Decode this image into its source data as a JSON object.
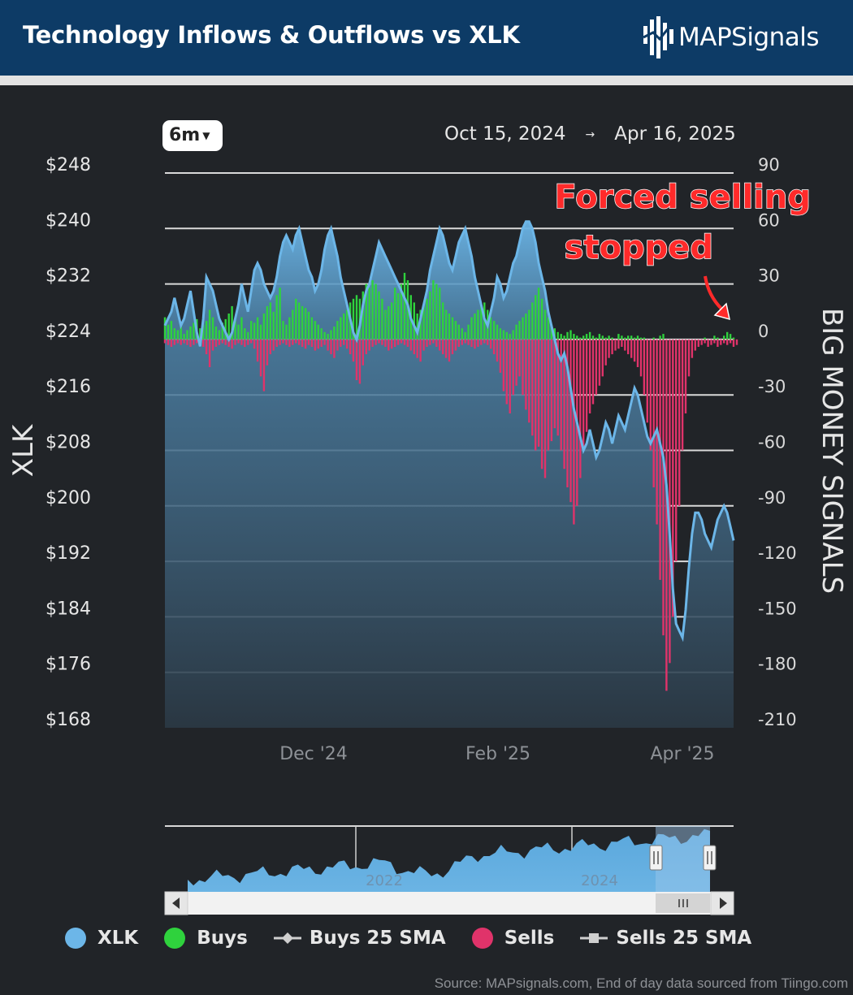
{
  "header": {
    "title": "Technology Inflows & Outflows vs XLK",
    "logo_text": "MAPSignals",
    "bg_color": "#0d3b66"
  },
  "controls": {
    "range_label": "6m",
    "date_from": "Oct 15, 2024",
    "date_to": "Apr 16, 2025",
    "arrow": "→"
  },
  "annotation": {
    "line1": "Forced selling",
    "line2": "stopped",
    "color": "#ff2a2a"
  },
  "legend": {
    "items": [
      {
        "label": "XLK",
        "kind": "dot",
        "color": "#6cb6e8"
      },
      {
        "label": "Buys",
        "kind": "dot",
        "color": "#2fd23d"
      },
      {
        "label": "Buys 25 SMA",
        "kind": "sma-diamond",
        "color": "#cfcfcf"
      },
      {
        "label": "Sells",
        "kind": "dot",
        "color": "#e0336a"
      },
      {
        "label": "Sells 25 SMA",
        "kind": "sma-square",
        "color": "#cfcfcf"
      }
    ]
  },
  "source": "Source: MAPsignals.com, End of day data sourced from Tiingo.com",
  "chart_data": {
    "type": "combo-area-bar",
    "left_axis": {
      "label": "XLK",
      "ticks": [
        "$248",
        "$240",
        "$232",
        "$224",
        "$216",
        "$208",
        "$200",
        "$192",
        "$184",
        "$176",
        "$168"
      ],
      "range": [
        168,
        248
      ]
    },
    "right_axis": {
      "label": "BIG MONEY SIGNALS",
      "ticks": [
        "90",
        "60",
        "30",
        "0",
        "-30",
        "-60",
        "-90",
        "-120",
        "-150",
        "-180",
        "-210"
      ],
      "range": [
        -210,
        90
      ]
    },
    "x_ticks": [
      "Dec '24",
      "Feb '25",
      "Apr '25"
    ],
    "grid": true,
    "series": [
      {
        "name": "XLK",
        "kind": "area",
        "color": "#6cb6e8",
        "values": [
          226,
          227,
          228,
          230,
          228,
          226,
          227,
          229,
          231,
          228,
          225,
          223,
          227,
          233,
          232,
          231,
          229,
          227,
          226,
          225,
          224,
          225,
          227,
          229,
          232,
          230,
          228,
          231,
          234,
          235,
          234,
          232,
          231,
          230,
          231,
          233,
          236,
          238,
          239,
          238,
          237,
          239,
          240,
          238,
          236,
          234,
          233,
          231,
          232,
          234,
          237,
          239,
          240,
          238,
          236,
          233,
          231,
          229,
          227,
          225,
          224,
          226,
          229,
          231,
          232,
          234,
          236,
          238,
          237,
          236,
          235,
          234,
          233,
          232,
          231,
          230,
          229,
          227,
          226,
          225,
          227,
          229,
          231,
          234,
          236,
          238,
          240,
          239,
          237,
          235,
          234,
          236,
          238,
          239,
          240,
          238,
          236,
          233,
          231,
          229,
          227,
          226,
          228,
          230,
          233,
          232,
          230,
          231,
          233,
          235,
          236,
          238,
          240,
          241,
          241,
          240,
          238,
          235,
          233,
          231,
          228,
          226,
          224,
          222,
          221,
          222,
          220,
          217,
          214,
          212,
          210,
          208,
          209,
          211,
          209,
          207,
          208,
          210,
          212,
          211,
          209,
          211,
          213,
          212,
          211,
          213,
          215,
          217,
          216,
          214,
          212,
          210,
          209,
          210,
          211,
          209,
          207,
          203,
          196,
          188,
          183,
          182,
          181,
          185,
          191,
          196,
          199,
          199,
          198,
          196,
          195,
          194,
          196,
          198,
          199,
          200,
          199,
          197,
          195
        ]
      },
      {
        "name": "Buys",
        "kind": "bar",
        "color": "#2fd23d",
        "values": [
          12,
          8,
          10,
          6,
          5,
          8,
          3,
          5,
          7,
          9,
          11,
          6,
          8,
          10,
          16,
          12,
          7,
          5,
          9,
          11,
          14,
          18,
          10,
          8,
          12,
          6,
          4,
          10,
          9,
          12,
          8,
          14,
          18,
          20,
          15,
          24,
          28,
          10,
          8,
          12,
          16,
          22,
          20,
          18,
          17,
          15,
          12,
          10,
          8,
          6,
          4,
          3,
          5,
          7,
          10,
          12,
          14,
          16,
          20,
          22,
          24,
          22,
          26,
          30,
          28,
          32,
          30,
          26,
          22,
          16,
          18,
          20,
          28,
          25,
          30,
          36,
          32,
          24,
          20,
          14,
          16,
          18,
          22,
          26,
          32,
          30,
          28,
          20,
          16,
          14,
          12,
          10,
          8,
          6,
          4,
          8,
          12,
          14,
          16,
          18,
          20,
          16,
          12,
          10,
          8,
          6,
          5,
          4,
          3,
          5,
          8,
          10,
          12,
          14,
          16,
          20,
          24,
          28,
          22,
          16,
          12,
          8,
          6,
          4,
          3,
          2,
          4,
          5,
          3,
          2,
          1,
          2,
          3,
          4,
          2,
          1,
          3,
          2,
          1,
          2,
          1,
          0,
          3,
          2,
          1,
          2,
          2,
          1,
          2,
          1,
          1,
          0,
          0,
          1,
          0,
          2,
          3,
          0,
          0,
          0,
          0,
          0,
          0,
          0,
          0,
          0,
          0,
          0,
          0,
          1,
          0,
          0,
          2,
          1,
          0,
          2,
          4,
          3,
          1
        ]
      },
      {
        "name": "Sells",
        "kind": "bar",
        "color": "#e0336a",
        "values": [
          -2,
          -3,
          -4,
          -3,
          -2,
          -3,
          -2,
          -3,
          -4,
          -3,
          -2,
          -2,
          -4,
          -8,
          -15,
          -6,
          -4,
          -3,
          -2,
          -3,
          -4,
          -5,
          -3,
          -2,
          -3,
          -4,
          -3,
          -2,
          -5,
          -12,
          -20,
          -28,
          -14,
          -8,
          -6,
          -4,
          -3,
          -2,
          -3,
          -4,
          -3,
          -2,
          -3,
          -4,
          -5,
          -3,
          -4,
          -6,
          -5,
          -4,
          -3,
          -6,
          -8,
          -10,
          -6,
          -4,
          -3,
          -5,
          -8,
          -12,
          -22,
          -24,
          -14,
          -8,
          -6,
          -4,
          -3,
          -2,
          -3,
          -4,
          -6,
          -5,
          -4,
          -3,
          -2,
          -3,
          -4,
          -6,
          -8,
          -10,
          -12,
          -6,
          -4,
          -3,
          -2,
          -4,
          -6,
          -8,
          -10,
          -12,
          -8,
          -6,
          -4,
          -3,
          -2,
          -3,
          -4,
          -5,
          -4,
          -3,
          -2,
          -3,
          -5,
          -8,
          -12,
          -18,
          -28,
          -35,
          -40,
          -30,
          -25,
          -20,
          -30,
          -38,
          -45,
          -52,
          -60,
          -58,
          -70,
          -75,
          -60,
          -55,
          -48,
          -52,
          -60,
          -70,
          -80,
          -88,
          -100,
          -90,
          -75,
          -60,
          -50,
          -40,
          -35,
          -30,
          -25,
          -20,
          -14,
          -10,
          -8,
          -6,
          -5,
          -4,
          -6,
          -8,
          -10,
          -12,
          -15,
          -20,
          -30,
          -45,
          -60,
          -80,
          -100,
          -130,
          -160,
          -190,
          -175,
          -150,
          -120,
          -90,
          -60,
          -40,
          -20,
          -10,
          -6,
          -4,
          -3,
          -2,
          -4,
          -3,
          -2,
          -4,
          -3,
          -2,
          -3,
          -2,
          -4,
          -3
        ]
      }
    ],
    "overview": {
      "x_ticks": [
        "2022",
        "2024"
      ]
    }
  }
}
